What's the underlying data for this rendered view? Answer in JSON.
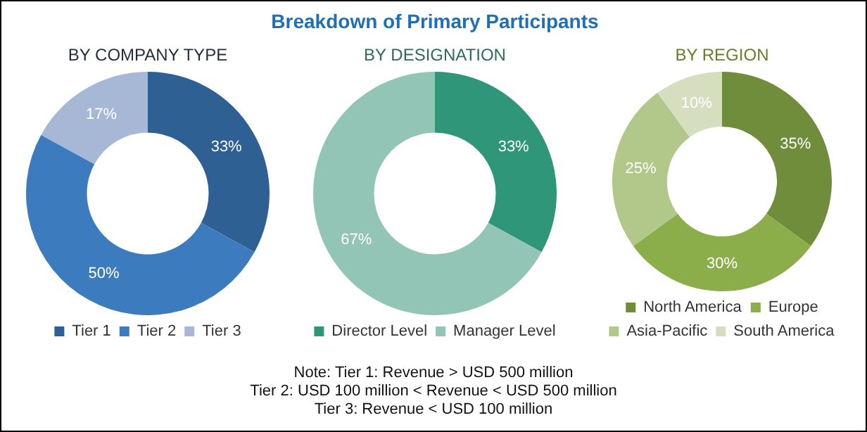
{
  "chart_data": [
    {
      "type": "donut",
      "subtitle": "BY COMPANY TYPE",
      "categories": [
        "Tier 1",
        "Tier 2",
        "Tier 3"
      ],
      "values": [
        33,
        50,
        17
      ],
      "colors": [
        "#2e6094",
        "#3d7bbf",
        "#a6b8d6"
      ],
      "value_labels": [
        "33%",
        "50%",
        "17%"
      ],
      "legend": "bottom"
    },
    {
      "type": "donut",
      "title": "Breakdown of Primary Participants",
      "subtitle": "BY DESIGNATION",
      "categories": [
        "Director Level",
        "Manager Level"
      ],
      "values": [
        33,
        67
      ],
      "colors": [
        "#2f9679",
        "#92c5b6"
      ],
      "value_labels": [
        "33%",
        "67%"
      ],
      "legend": "bottom",
      "annotations": [
        "Note: Tier 1: Revenue > USD 500 million",
        "Tier 2: USD 100 million < Revenue < USD 500 million",
        "Tier 3: Revenue < USD 100 million"
      ]
    },
    {
      "type": "donut",
      "subtitle": "BY REGION",
      "categories": [
        "North America",
        "Europe",
        "Asia-Pacific",
        "South America"
      ],
      "values": [
        35,
        30,
        25,
        10
      ],
      "colors": [
        "#6f8d3b",
        "#8cae4a",
        "#b2c88a",
        "#d5dfbf"
      ],
      "value_labels": [
        "35%",
        "30%",
        "25%",
        "10%"
      ],
      "legend": "bottom"
    }
  ]
}
